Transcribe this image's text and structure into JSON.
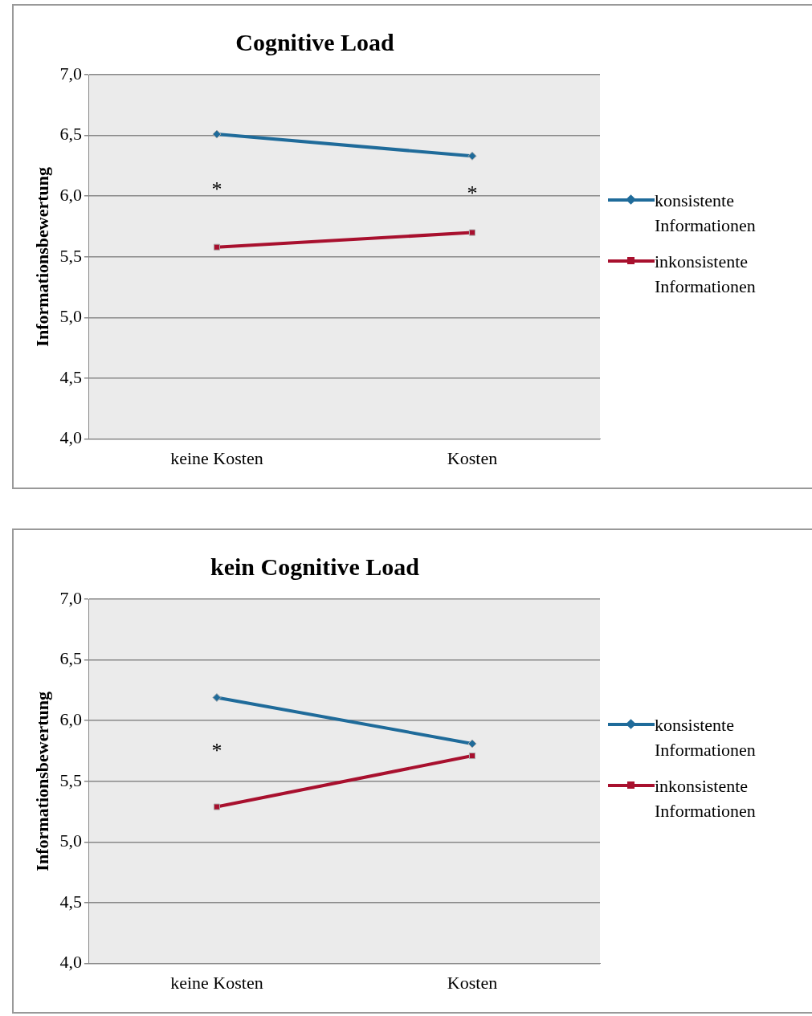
{
  "chart_data": [
    {
      "type": "line",
      "title": "Cognitive Load",
      "ylabel": "Informationsbewertung",
      "categories": [
        "keine Kosten",
        "Kosten"
      ],
      "series": [
        {
          "name": "konsistente Informationen",
          "color": "#1f6b9a",
          "values": [
            6.51,
            6.33
          ],
          "marker": "diamond"
        },
        {
          "name": "inkonsistente Informationen",
          "color": "#a8102e",
          "values": [
            5.58,
            5.7
          ],
          "marker": "square"
        }
      ],
      "ylim": [
        4,
        7
      ],
      "yticks": [
        {
          "value": 4,
          "label": "4,0"
        },
        {
          "value": 4.5,
          "label": "4,5"
        },
        {
          "value": 5,
          "label": "5,0"
        },
        {
          "value": 5.5,
          "label": "5,5"
        },
        {
          "value": 6,
          "label": "6,0"
        },
        {
          "value": 6.5,
          "label": "6,5"
        },
        {
          "value": 7,
          "label": "7,0"
        }
      ],
      "grid": "y",
      "legend": "right",
      "annotations": [
        "*",
        "*"
      ]
    },
    {
      "type": "line",
      "title": "kein Cognitive Load",
      "ylabel": "Informationsbewertung",
      "categories": [
        "keine Kosten",
        "Kosten"
      ],
      "series": [
        {
          "name": "konsistente Informationen",
          "color": "#1f6b9a",
          "values": [
            6.19,
            5.81
          ],
          "marker": "diamond"
        },
        {
          "name": "inkonsistente Informationen",
          "color": "#a8102e",
          "values": [
            5.29,
            5.71
          ],
          "marker": "square"
        }
      ],
      "ylim": [
        4,
        7
      ],
      "yticks": [
        {
          "value": 4,
          "label": "4,0"
        },
        {
          "value": 4.5,
          "label": "4,5"
        },
        {
          "value": 5,
          "label": "5,0"
        },
        {
          "value": 5.5,
          "label": "5,5"
        },
        {
          "value": 6,
          "label": "6,0"
        },
        {
          "value": 6.5,
          "label": "6,5"
        },
        {
          "value": 7,
          "label": "7,0"
        }
      ],
      "grid": "y",
      "legend": "right",
      "annotations": [
        "*"
      ]
    }
  ]
}
